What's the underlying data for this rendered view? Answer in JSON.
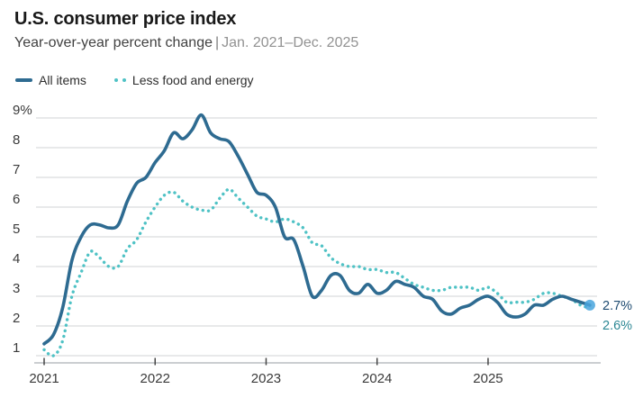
{
  "header": {
    "title": "U.S. consumer price index",
    "subtitle": "Year-over-year percent change",
    "separator": "|",
    "date_range": "Jan. 2021–Dec. 2025"
  },
  "legend": [
    {
      "label": "All items",
      "swatch": "solid-line",
      "color": "#2e6b91"
    },
    {
      "label": "Less food and energy",
      "swatch": "dotted-line",
      "color": "#4fc2c5"
    }
  ],
  "colors": {
    "all_items_line": "#2e6b91",
    "core_line": "#4fc2c5",
    "end_marker": "#48a5dd",
    "grid": "#dadcde",
    "axis": "#cbced1",
    "tick": "#454545",
    "axis_text": "#3a3a3a",
    "end_label_all_items": "#1d4a70",
    "end_label_core": "#2c8794"
  },
  "chart_data": {
    "type": "line",
    "title": "U.S. consumer price index",
    "subtitle": "Year-over-year percent change | Jan. 2021–Dec. 2025",
    "x_start": "2021-01",
    "x_end": "2025-12",
    "x_interval": "monthly",
    "x_tick_labels": [
      "2021",
      "2022",
      "2023",
      "2024",
      "2025"
    ],
    "x_tick_month_index": [
      0,
      12,
      24,
      36,
      48
    ],
    "y_ticks": [
      9,
      8,
      7,
      6,
      5,
      4,
      3,
      2,
      1
    ],
    "y_tick_labels": [
      "9%",
      "8",
      "7",
      "6",
      "5",
      "4",
      "3",
      "2",
      "1"
    ],
    "ylim": [
      1,
      9
    ],
    "grid": "horizontal",
    "legend_position": "top-left",
    "series": [
      {
        "name": "All items",
        "style": "solid",
        "color": "#2e6b91",
        "values": [
          1.4,
          1.7,
          2.6,
          4.2,
          5.0,
          5.4,
          5.4,
          5.3,
          5.4,
          6.2,
          6.8,
          7.0,
          7.5,
          7.9,
          8.5,
          8.3,
          8.6,
          9.1,
          8.5,
          8.3,
          8.2,
          7.7,
          7.1,
          6.5,
          6.4,
          6.0,
          5.0,
          4.9,
          4.0,
          3.0,
          3.2,
          3.7,
          3.7,
          3.2,
          3.1,
          3.4,
          3.1,
          3.2,
          3.5,
          3.4,
          3.3,
          3.0,
          2.9,
          2.5,
          2.4,
          2.6,
          2.7,
          2.9,
          3.0,
          2.8,
          2.4,
          2.3,
          2.4,
          2.7,
          2.7,
          2.9,
          3.0,
          2.9,
          2.8,
          2.7
        ]
      },
      {
        "name": "Less food and energy",
        "style": "dotted",
        "color": "#4fc2c5",
        "values": [
          1.2,
          1.0,
          1.5,
          3.0,
          3.8,
          4.5,
          4.3,
          4.0,
          4.0,
          4.6,
          4.9,
          5.5,
          6.0,
          6.4,
          6.5,
          6.2,
          6.0,
          5.9,
          5.9,
          6.3,
          6.6,
          6.3,
          6.0,
          5.7,
          5.6,
          5.5,
          5.6,
          5.5,
          5.3,
          4.8,
          4.7,
          4.3,
          4.1,
          4.0,
          4.0,
          3.9,
          3.9,
          3.8,
          3.8,
          3.6,
          3.4,
          3.3,
          3.2,
          3.2,
          3.3,
          3.3,
          3.3,
          3.2,
          3.3,
          3.1,
          2.8,
          2.8,
          2.8,
          2.9,
          3.1,
          3.1,
          3.0,
          2.9,
          2.7,
          2.6
        ]
      }
    ],
    "end_labels": [
      {
        "text": "2.7%",
        "series": "All items",
        "value": 2.7,
        "color": "#1d4a70"
      },
      {
        "text": "2.6%",
        "series": "Less food and energy",
        "value": 2.6,
        "color": "#2c8794"
      }
    ],
    "end_marker": {
      "series": "All items",
      "color": "#48a5dd"
    }
  }
}
